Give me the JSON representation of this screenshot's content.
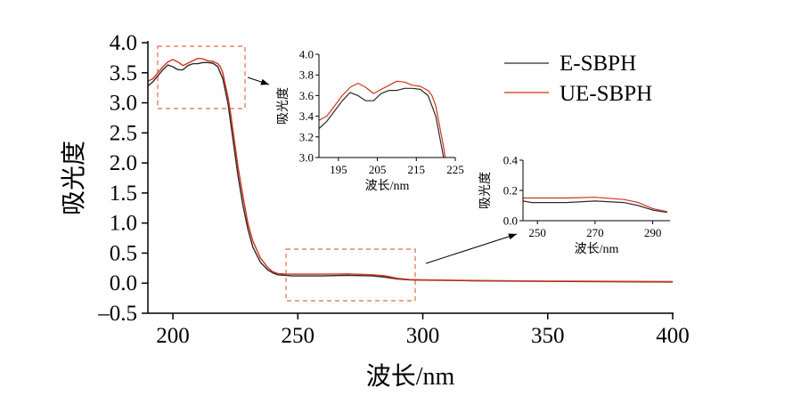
{
  "chart_data": [
    {
      "type": "line",
      "xlabel": "波长/nm",
      "ylabel": "吸光度",
      "xlim": [
        190,
        400
      ],
      "ylim": [
        -0.5,
        4.0
      ],
      "xticks": [
        200,
        250,
        300,
        350,
        400
      ],
      "xtick_labels": [
        "200",
        "250",
        "300",
        "350",
        "400"
      ],
      "yticks": [
        4.0,
        3.5,
        3.0,
        2.5,
        2.0,
        1.5,
        1.0,
        0.5,
        0.0,
        -0.5
      ],
      "ytick_labels": [
        "4.0",
        "3.5",
        "3.0",
        "2.5",
        "2.0",
        "1.5",
        "1.0",
        "0.5",
        "0.0",
        "‒0.5"
      ],
      "legend_position": "top-right",
      "series": [
        {
          "name": "E-SBPH",
          "color": "#2a2a2a",
          "x": [
            190,
            192,
            194,
            196,
            198,
            200,
            202,
            204,
            206,
            208,
            210,
            212,
            214,
            216,
            218,
            219,
            220,
            221,
            222,
            223,
            224,
            225,
            226,
            228,
            230,
            232,
            235,
            238,
            240,
            242,
            245,
            248,
            250,
            260,
            270,
            280,
            285,
            290,
            295,
            300,
            320,
            350,
            400
          ],
          "y": [
            3.28,
            3.35,
            3.45,
            3.55,
            3.63,
            3.6,
            3.55,
            3.55,
            3.62,
            3.65,
            3.65,
            3.67,
            3.67,
            3.66,
            3.6,
            3.5,
            3.4,
            3.2,
            3.0,
            2.7,
            2.4,
            2.1,
            1.8,
            1.3,
            0.9,
            0.6,
            0.35,
            0.22,
            0.17,
            0.14,
            0.13,
            0.12,
            0.12,
            0.12,
            0.13,
            0.12,
            0.1,
            0.07,
            0.055,
            0.05,
            0.04,
            0.03,
            0.02
          ]
        },
        {
          "name": "UE-SBPH",
          "color": "#d0321d",
          "x": [
            190,
            192,
            194,
            196,
            198,
            200,
            202,
            204,
            206,
            208,
            210,
            212,
            214,
            216,
            218,
            219,
            220,
            221,
            222,
            223,
            224,
            225,
            226,
            228,
            230,
            232,
            235,
            238,
            240,
            242,
            245,
            248,
            250,
            260,
            270,
            280,
            285,
            290,
            295,
            300,
            320,
            350,
            400
          ],
          "y": [
            3.36,
            3.4,
            3.5,
            3.6,
            3.68,
            3.72,
            3.68,
            3.62,
            3.66,
            3.7,
            3.74,
            3.73,
            3.7,
            3.69,
            3.65,
            3.6,
            3.5,
            3.3,
            3.1,
            2.85,
            2.55,
            2.25,
            1.95,
            1.45,
            1.0,
            0.7,
            0.42,
            0.26,
            0.19,
            0.16,
            0.15,
            0.15,
            0.15,
            0.15,
            0.155,
            0.14,
            0.12,
            0.08,
            0.06,
            0.055,
            0.045,
            0.035,
            0.025
          ]
        }
      ]
    },
    {
      "type": "line",
      "inset": "upper",
      "xlabel": "波长/nm",
      "ylabel": "吸光度",
      "xlim": [
        190,
        225
      ],
      "ylim": [
        3.0,
        4.0
      ],
      "xticks": [
        195,
        205,
        215,
        225
      ],
      "xtick_labels": [
        "195",
        "205",
        "215",
        "225"
      ],
      "yticks": [
        4.0,
        3.8,
        3.6,
        3.4,
        3.2,
        3.0
      ],
      "ytick_labels": [
        "4.0",
        "3.8",
        "3.6",
        "3.4",
        "3.2",
        "3.0"
      ]
    },
    {
      "type": "line",
      "inset": "lower",
      "xlabel": "波长/nm",
      "ylabel": "吸光度",
      "xlim": [
        245,
        296
      ],
      "ylim": [
        0.0,
        0.4
      ],
      "xticks": [
        250,
        270,
        290
      ],
      "xtick_labels": [
        "250",
        "270",
        "290"
      ],
      "yticks": [
        0.4,
        0.2,
        0.0
      ],
      "ytick_labels": [
        "0.4",
        "0.2",
        "0.0"
      ]
    }
  ]
}
